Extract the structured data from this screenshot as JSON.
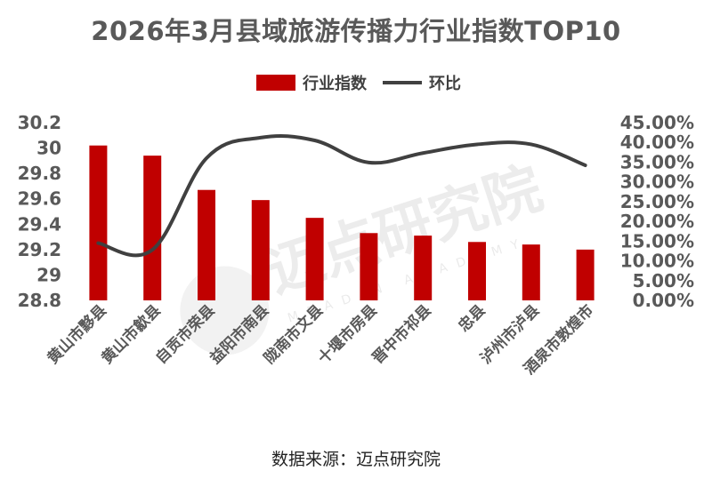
{
  "chart_data": {
    "type": "bar",
    "title": "2026年3月县域旅游传播力行业指数TOP10",
    "categories": [
      "黄山市黟县",
      "黄山市歙县",
      "自贡市荣县",
      "益阳市南县",
      "陇南市文县",
      "十堰市房县",
      "晋中市祁县",
      "忠县",
      "泸州市泸县",
      "酒泉市敦煌市"
    ],
    "series": [
      {
        "name": "行业指数",
        "type": "bar",
        "axis": "left",
        "color": "#C00000",
        "values": [
          30.02,
          29.94,
          29.67,
          29.59,
          29.45,
          29.33,
          29.31,
          29.26,
          29.24,
          29.2
        ]
      },
      {
        "name": "环比",
        "type": "line",
        "axis": "right",
        "color": "#404040",
        "values": [
          0.145,
          0.128,
          0.36,
          0.412,
          0.405,
          0.349,
          0.373,
          0.395,
          0.395,
          0.342
        ]
      }
    ],
    "y_left": {
      "min": 28.8,
      "max": 30.2,
      "step": 0.2,
      "tick_labels": [
        "28.8",
        "29",
        "29.2",
        "29.4",
        "29.6",
        "29.8",
        "30",
        "30.2"
      ]
    },
    "y_right": {
      "min": 0,
      "max": 0.45,
      "step": 0.05,
      "tick_labels": [
        "0.00%",
        "5.00%",
        "10.00%",
        "15.00%",
        "20.00%",
        "25.00%",
        "30.00%",
        "35.00%",
        "40.00%",
        "45.00%"
      ]
    },
    "grid": false,
    "legend_position": "top"
  },
  "source": "数据来源：迈点研究院",
  "watermark": {
    "text": "迈点研究院",
    "subtext": "MEADIN ACADEMY"
  }
}
